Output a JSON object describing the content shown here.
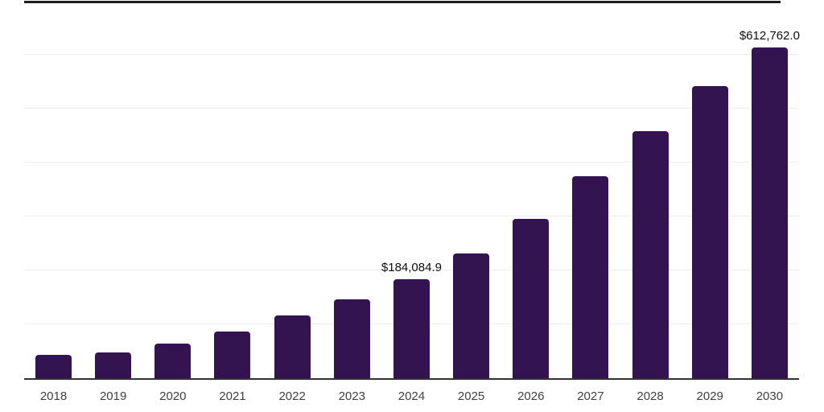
{
  "chart_data": {
    "type": "bar",
    "title": "",
    "xlabel": "",
    "ylabel": "",
    "categories": [
      "2018",
      "2019",
      "2020",
      "2021",
      "2022",
      "2023",
      "2024",
      "2025",
      "2026",
      "2027",
      "2028",
      "2029",
      "2030"
    ],
    "values": [
      43300,
      48500,
      64200,
      86600,
      116400,
      146300,
      184084.9,
      231300,
      295500,
      374600,
      458200,
      541800,
      612762.0
    ],
    "value_labels": {
      "2024": "$184,084.9",
      "2030": "$612,762.0"
    },
    "ylim": [
      0,
      700000
    ],
    "gridline_step": 100000,
    "grid": "horizontal-only",
    "y_axis_tick_labels": "none",
    "legend": "none",
    "colors": {
      "bar": "#341450",
      "axis": "#333333",
      "gridline": "#ededed",
      "top_rule": "#1d1d1d",
      "value_label": "#0d0d0d",
      "tick_label": "#404040",
      "background": "#ffffff"
    }
  }
}
